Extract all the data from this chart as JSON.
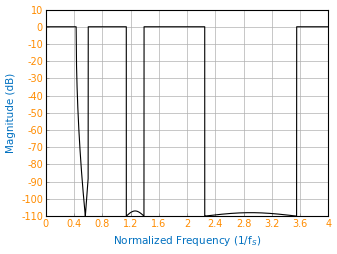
{
  "title": "",
  "xlabel": "Normalized Frequency (1/f_S)",
  "ylabel": "Magnitude (dB)",
  "xlim": [
    0,
    4
  ],
  "ylim": [
    -110,
    10
  ],
  "xticks": [
    0,
    0.4,
    0.8,
    1.2,
    1.6,
    2.0,
    2.4,
    2.8,
    3.2,
    3.6,
    4.0
  ],
  "xtick_labels": [
    "0",
    "0.4",
    "0.8",
    "1.2",
    "1.6",
    "2",
    "2.4",
    "2.8",
    "3.2",
    "3.6",
    "4"
  ],
  "yticks": [
    10,
    0,
    -10,
    -20,
    -30,
    -40,
    -50,
    -60,
    -70,
    -80,
    -90,
    -100,
    -110
  ],
  "line_color": "#000000",
  "grid_color": "#b0b0b0",
  "xlabel_color": "#0070C0",
  "ylabel_color": "#0070C0",
  "tick_color": "#FF8C00",
  "bg_color": "#ffffff",
  "figsize": [
    3.37,
    2.54
  ],
  "dpi": 100
}
